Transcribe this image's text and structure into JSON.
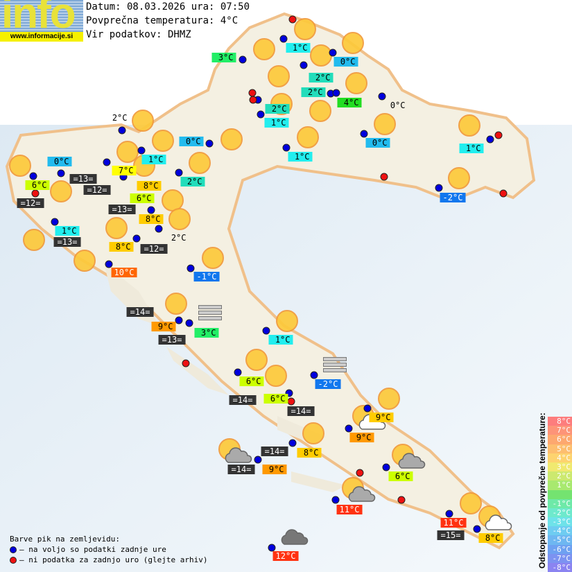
{
  "logo": {
    "word": "info",
    "url": "www.informacije.si"
  },
  "header": {
    "date_line": "Datum: 08.03.2026 ura: 07:50",
    "avg_line": "Povprečna temperatura: 4°C",
    "source_line": "Vir podatkov: DHMZ"
  },
  "colors": {
    "map_land": "#f4f0e2",
    "map_border": "#f0c08a",
    "sea": "#e9f1f7",
    "station_ok": "#0000dd",
    "station_missing": "#ee1111",
    "sea_temp_bg": "#333333"
  },
  "stations": [
    {
      "t": "3°C",
      "c": "#22ee66"
    },
    {
      "t": "1°C",
      "c": "#22eeee"
    },
    {
      "t": "0°C",
      "c": "#22bbee"
    },
    {
      "t": "2°C",
      "c": "#22ddbb"
    },
    {
      "t": "2°C",
      "c": "#22ddbb"
    },
    {
      "t": "4°C",
      "c": "#22dd22"
    },
    {
      "t": "0°C",
      "c": ""
    },
    {
      "t": "2°C",
      "c": "#22ddbb"
    },
    {
      "t": "1°C",
      "c": "#22eeee"
    },
    {
      "t": "0°C",
      "c": "#22bbee"
    },
    {
      "t": "1°C",
      "c": "#22eeee"
    },
    {
      "t": "1°C",
      "c": "#22eeee"
    },
    {
      "t": "-2°C",
      "c": "#1177ee"
    },
    {
      "t": "2°C",
      "c": ""
    },
    {
      "t": "0°C",
      "c": "#22bbee"
    },
    {
      "t": "0°C",
      "c": "#22bbee"
    },
    {
      "t": "1°C",
      "c": "#22eeee"
    },
    {
      "t": "7°C",
      "c": "#ffff00"
    },
    {
      "t": "6°C",
      "c": "#ccff00"
    },
    {
      "t": "8°C",
      "c": "#ffcc00"
    },
    {
      "t": "6°C",
      "c": "#ccff00"
    },
    {
      "t": "2°C",
      "c": "#22ddbb"
    },
    {
      "t": "8°C",
      "c": "#ffcc00"
    },
    {
      "t": "2°C",
      "c": ""
    },
    {
      "t": "1°C",
      "c": "#22eeee"
    },
    {
      "t": "8°C",
      "c": "#ffcc00"
    },
    {
      "t": "10°C",
      "c": "#ff6600"
    },
    {
      "t": "-1°C",
      "c": "#1177ee"
    },
    {
      "t": "9°C",
      "c": "#ff9900"
    },
    {
      "t": "3°C",
      "c": "#22ee66"
    },
    {
      "t": "1°C",
      "c": "#22eeee"
    },
    {
      "t": "6°C",
      "c": "#ccff00"
    },
    {
      "t": "-2°C",
      "c": "#1177ee"
    },
    {
      "t": "6°C",
      "c": "#ccff00"
    },
    {
      "t": "9°C",
      "c": "#ffcc00"
    },
    {
      "t": "9°C",
      "c": "#ff9900"
    },
    {
      "t": "8°C",
      "c": "#ffcc00"
    },
    {
      "t": "9°C",
      "c": "#ff9900"
    },
    {
      "t": "6°C",
      "c": "#ccff00"
    },
    {
      "t": "11°C",
      "c": "#ff3311"
    },
    {
      "t": "11°C",
      "c": "#ff3311"
    },
    {
      "t": "8°C",
      "c": "#ffcc00"
    },
    {
      "t": "12°C",
      "c": "#ff3311"
    }
  ],
  "sea_temps": [
    "=13=",
    "=12=",
    "=13=",
    "=12=",
    "=13=",
    "=12=",
    "=14=",
    "=13=",
    "=14=",
    "=14=",
    "=14=",
    "=14=",
    "=15="
  ],
  "weather_icons": {
    "sun": "sun-icon",
    "fog": "fog-icon",
    "cloud": "cloud-icon",
    "partly_cloudy": "partly-cloudy-icon"
  },
  "legend": {
    "title": "Barve pik na zemljevidu:",
    "ok": "– na voljo so podatki zadnje ure",
    "missing": "– ni podatka za zadnjo uro (glejte arhiv)"
  },
  "scale": {
    "label": "Odstopanje od povprečne temperature:",
    "items": [
      {
        "t": "8°C",
        "c": "#ff7070"
      },
      {
        "t": "7°C",
        "c": "#ff8a6a"
      },
      {
        "t": "6°C",
        "c": "#ffa060"
      },
      {
        "t": "5°C",
        "c": "#ffb860"
      },
      {
        "t": "4°C",
        "c": "#ffd060"
      },
      {
        "t": "3°C",
        "c": "#f0e860"
      },
      {
        "t": "2°C",
        "c": "#c8e860"
      },
      {
        "t": "1°C",
        "c": "#a0e860"
      },
      {
        "t": "",
        "c": "#66e060"
      },
      {
        "t": "-1°C",
        "c": "#60e8a0"
      },
      {
        "t": "-2°C",
        "c": "#60e8c8"
      },
      {
        "t": "-3°C",
        "c": "#60e0e8"
      },
      {
        "t": "-4°C",
        "c": "#60c8f0"
      },
      {
        "t": "-5°C",
        "c": "#60b0f0"
      },
      {
        "t": "-6°C",
        "c": "#6098f0"
      },
      {
        "t": "-7°C",
        "c": "#7088f0"
      },
      {
        "t": "-8°C",
        "c": "#8078f0"
      }
    ]
  }
}
